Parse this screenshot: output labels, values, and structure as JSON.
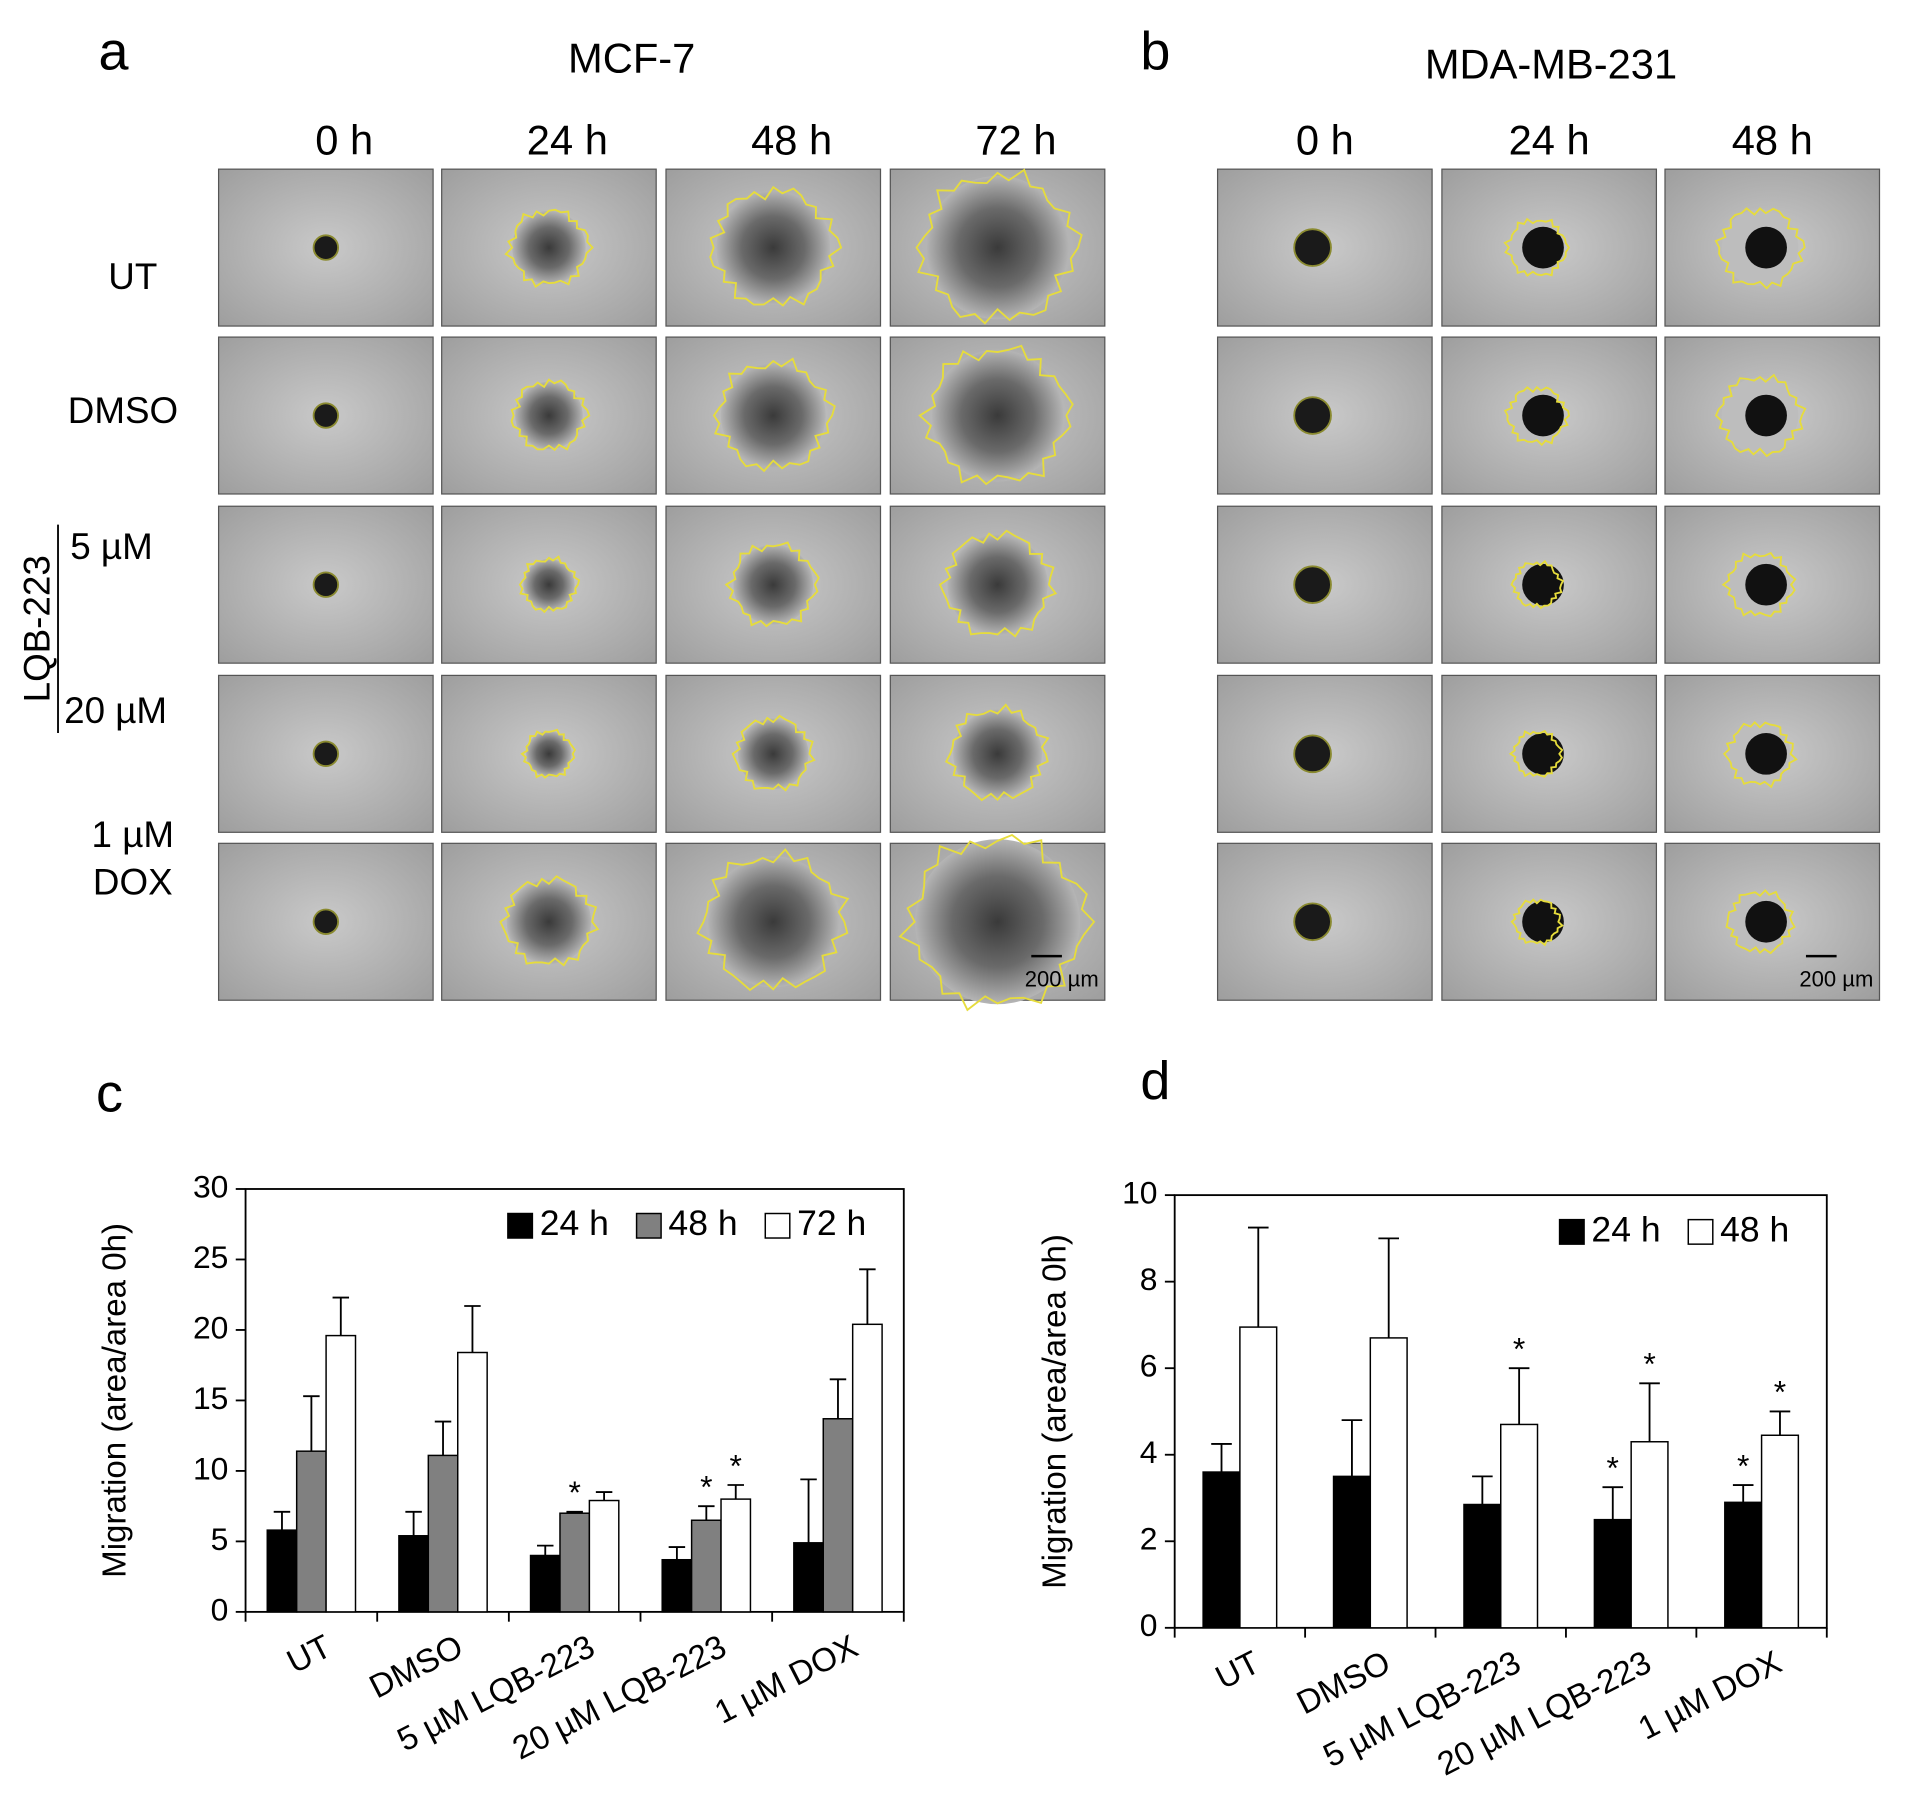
{
  "figure": {
    "panels": [
      "a",
      "b",
      "c",
      "d"
    ],
    "a": {
      "title": "MCF-7",
      "times": [
        "0 h",
        "24 h",
        "48 h",
        "72 h"
      ],
      "scale_bar": "200 µm"
    },
    "b": {
      "title": "MDA-MB-231",
      "times": [
        "0 h",
        "24 h",
        "48 h"
      ],
      "scale_bar": "200 µm"
    },
    "rows": [
      "UT",
      "DMSO",
      "5 µM",
      "20 µM",
      "1 µM",
      "DOX"
    ],
    "drug": "LQB-223"
  },
  "chart_data": [
    {
      "type": "bar",
      "ylabel": "Migration (area/area 0h)",
      "categories": [
        "UT",
        "DMSO",
        "5 µM LQB-223",
        "20 µM LQB-223",
        "1 µM DOX"
      ],
      "series": [
        {
          "name": "24 h",
          "color": "#000000",
          "values": [
            5.8,
            5.4,
            4.0,
            3.7,
            4.9
          ],
          "errors": [
            1.3,
            1.7,
            0.7,
            0.9,
            4.5
          ],
          "markers": [
            null,
            null,
            null,
            null,
            null
          ]
        },
        {
          "name": "48 h",
          "color": "#808080",
          "values": [
            11.4,
            11.1,
            7.0,
            6.5,
            13.7
          ],
          "errors": [
            3.9,
            2.4,
            0.1,
            1.0,
            2.8
          ],
          "markers": [
            null,
            null,
            "*",
            "*",
            null
          ]
        },
        {
          "name": "72 h",
          "color": "#ffffff",
          "values": [
            19.6,
            18.4,
            7.9,
            8.0,
            20.4
          ],
          "errors": [
            2.7,
            3.3,
            0.6,
            1.0,
            3.9
          ],
          "markers": [
            null,
            null,
            null,
            "*",
            null
          ]
        }
      ],
      "ylim": [
        0,
        30
      ],
      "yticks": [
        0,
        5,
        10,
        15,
        20,
        25,
        30
      ],
      "legend": "upper right"
    },
    {
      "type": "bar",
      "ylabel": "Migration (area/area 0h)",
      "categories": [
        "UT",
        "DMSO",
        "5 µM LQB-223",
        "20 µM LQB-223",
        "1 µM DOX"
      ],
      "series": [
        {
          "name": "24 h",
          "color": "#000000",
          "values": [
            3.6,
            3.5,
            2.85,
            2.5,
            2.9
          ],
          "errors": [
            0.65,
            1.3,
            0.65,
            0.75,
            0.4
          ],
          "markers": [
            null,
            null,
            null,
            "*",
            "*"
          ]
        },
        {
          "name": "48 h",
          "color": "#ffffff",
          "values": [
            6.95,
            6.7,
            4.7,
            4.3,
            4.45
          ],
          "errors": [
            2.3,
            2.3,
            1.3,
            1.35,
            0.55
          ],
          "markers": [
            null,
            null,
            "*",
            "*",
            "*"
          ]
        }
      ],
      "ylim": [
        0,
        10
      ],
      "yticks": [
        0,
        2,
        4,
        6,
        8,
        10
      ],
      "legend": "upper right"
    }
  ]
}
